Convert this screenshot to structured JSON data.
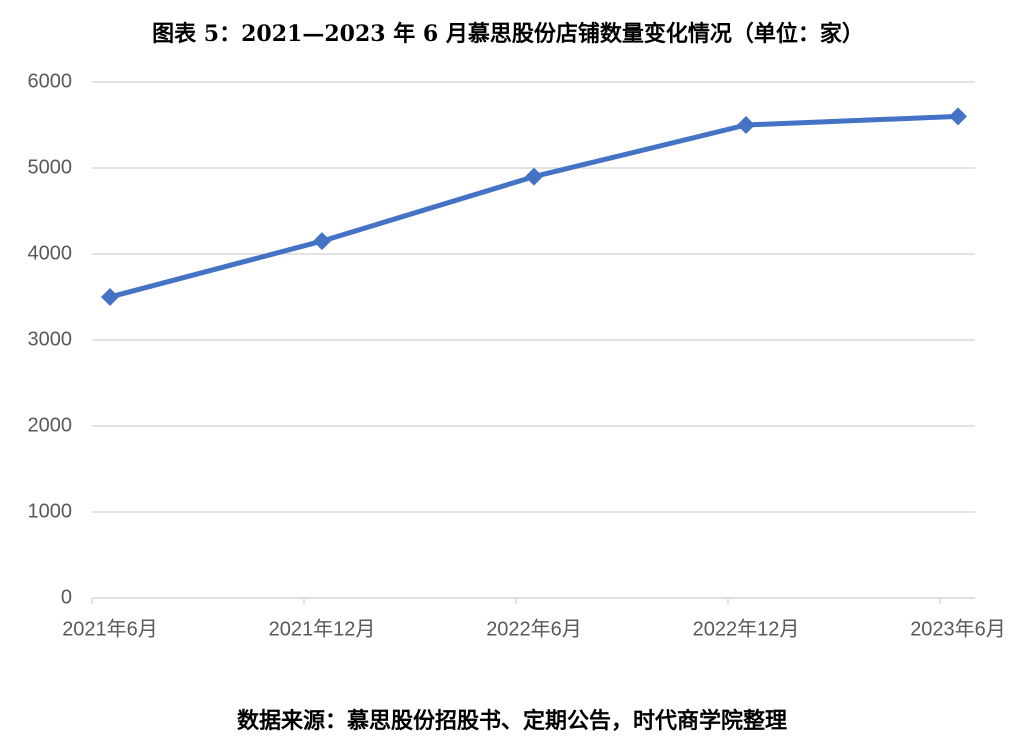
{
  "chart_data": {
    "type": "line",
    "title": "图表 5：2021—2023 年 6 月慕思股份店铺数量变化情况（单位：家）",
    "source": "数据来源：慕思股份招股书、定期公告，时代商学院整理",
    "categories": [
      "2021年6月",
      "2021年12月",
      "2022年6月",
      "2022年12月",
      "2023年6月"
    ],
    "series": [
      {
        "name": "店铺数量",
        "color": "#4472c4",
        "values": [
          3500,
          4150,
          4900,
          5500,
          5600
        ]
      }
    ],
    "ylim": [
      0,
      6000
    ],
    "yticks": [
      0,
      1000,
      2000,
      3000,
      4000,
      5000,
      6000
    ],
    "grid": true
  }
}
